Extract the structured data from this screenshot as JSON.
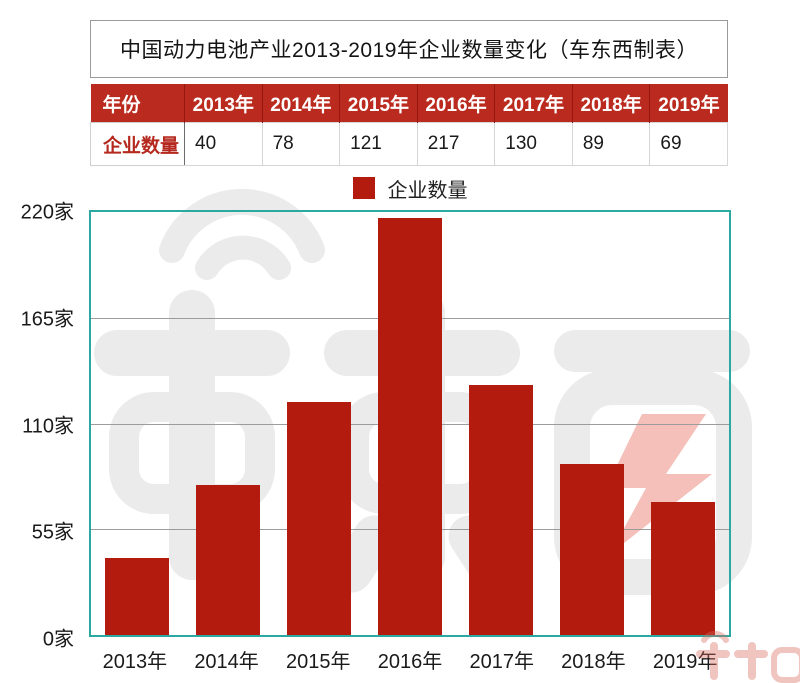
{
  "title": "中国动力电池产业2013-2019年企业数量变化（车东西制表）",
  "table": {
    "header_label": "年份",
    "row_label": "企业数量",
    "years": [
      "2013年",
      "2014年",
      "2015年",
      "2016年",
      "2017年",
      "2018年",
      "2019年"
    ],
    "values": [
      "40",
      "78",
      "121",
      "217",
      "130",
      "89",
      "69"
    ]
  },
  "legend": {
    "label": "企业数量",
    "color": "#B21B0E"
  },
  "chart_data": {
    "type": "bar",
    "title": "中国动力电池产业2013-2019年企业数量变化（车东西制表）",
    "series_name": "企业数量",
    "categories": [
      "2013年",
      "2014年",
      "2015年",
      "2016年",
      "2017年",
      "2018年",
      "2019年"
    ],
    "values": [
      40,
      78,
      121,
      217,
      130,
      89,
      69
    ],
    "xlabel": "",
    "ylabel": "",
    "ylim": [
      0,
      220
    ],
    "yticks": [
      0,
      55,
      110,
      165,
      220
    ],
    "ytick_labels": [
      "0家",
      "55家",
      "110家",
      "165家",
      "220家"
    ],
    "bar_color": "#B21B0E",
    "grid": true,
    "legend_position": "top",
    "plot_border_color": "#2BA89F"
  },
  "watermark": {
    "text": "车东西",
    "gray": "#EBEBEB",
    "accent_color": "#F5C0BA"
  }
}
